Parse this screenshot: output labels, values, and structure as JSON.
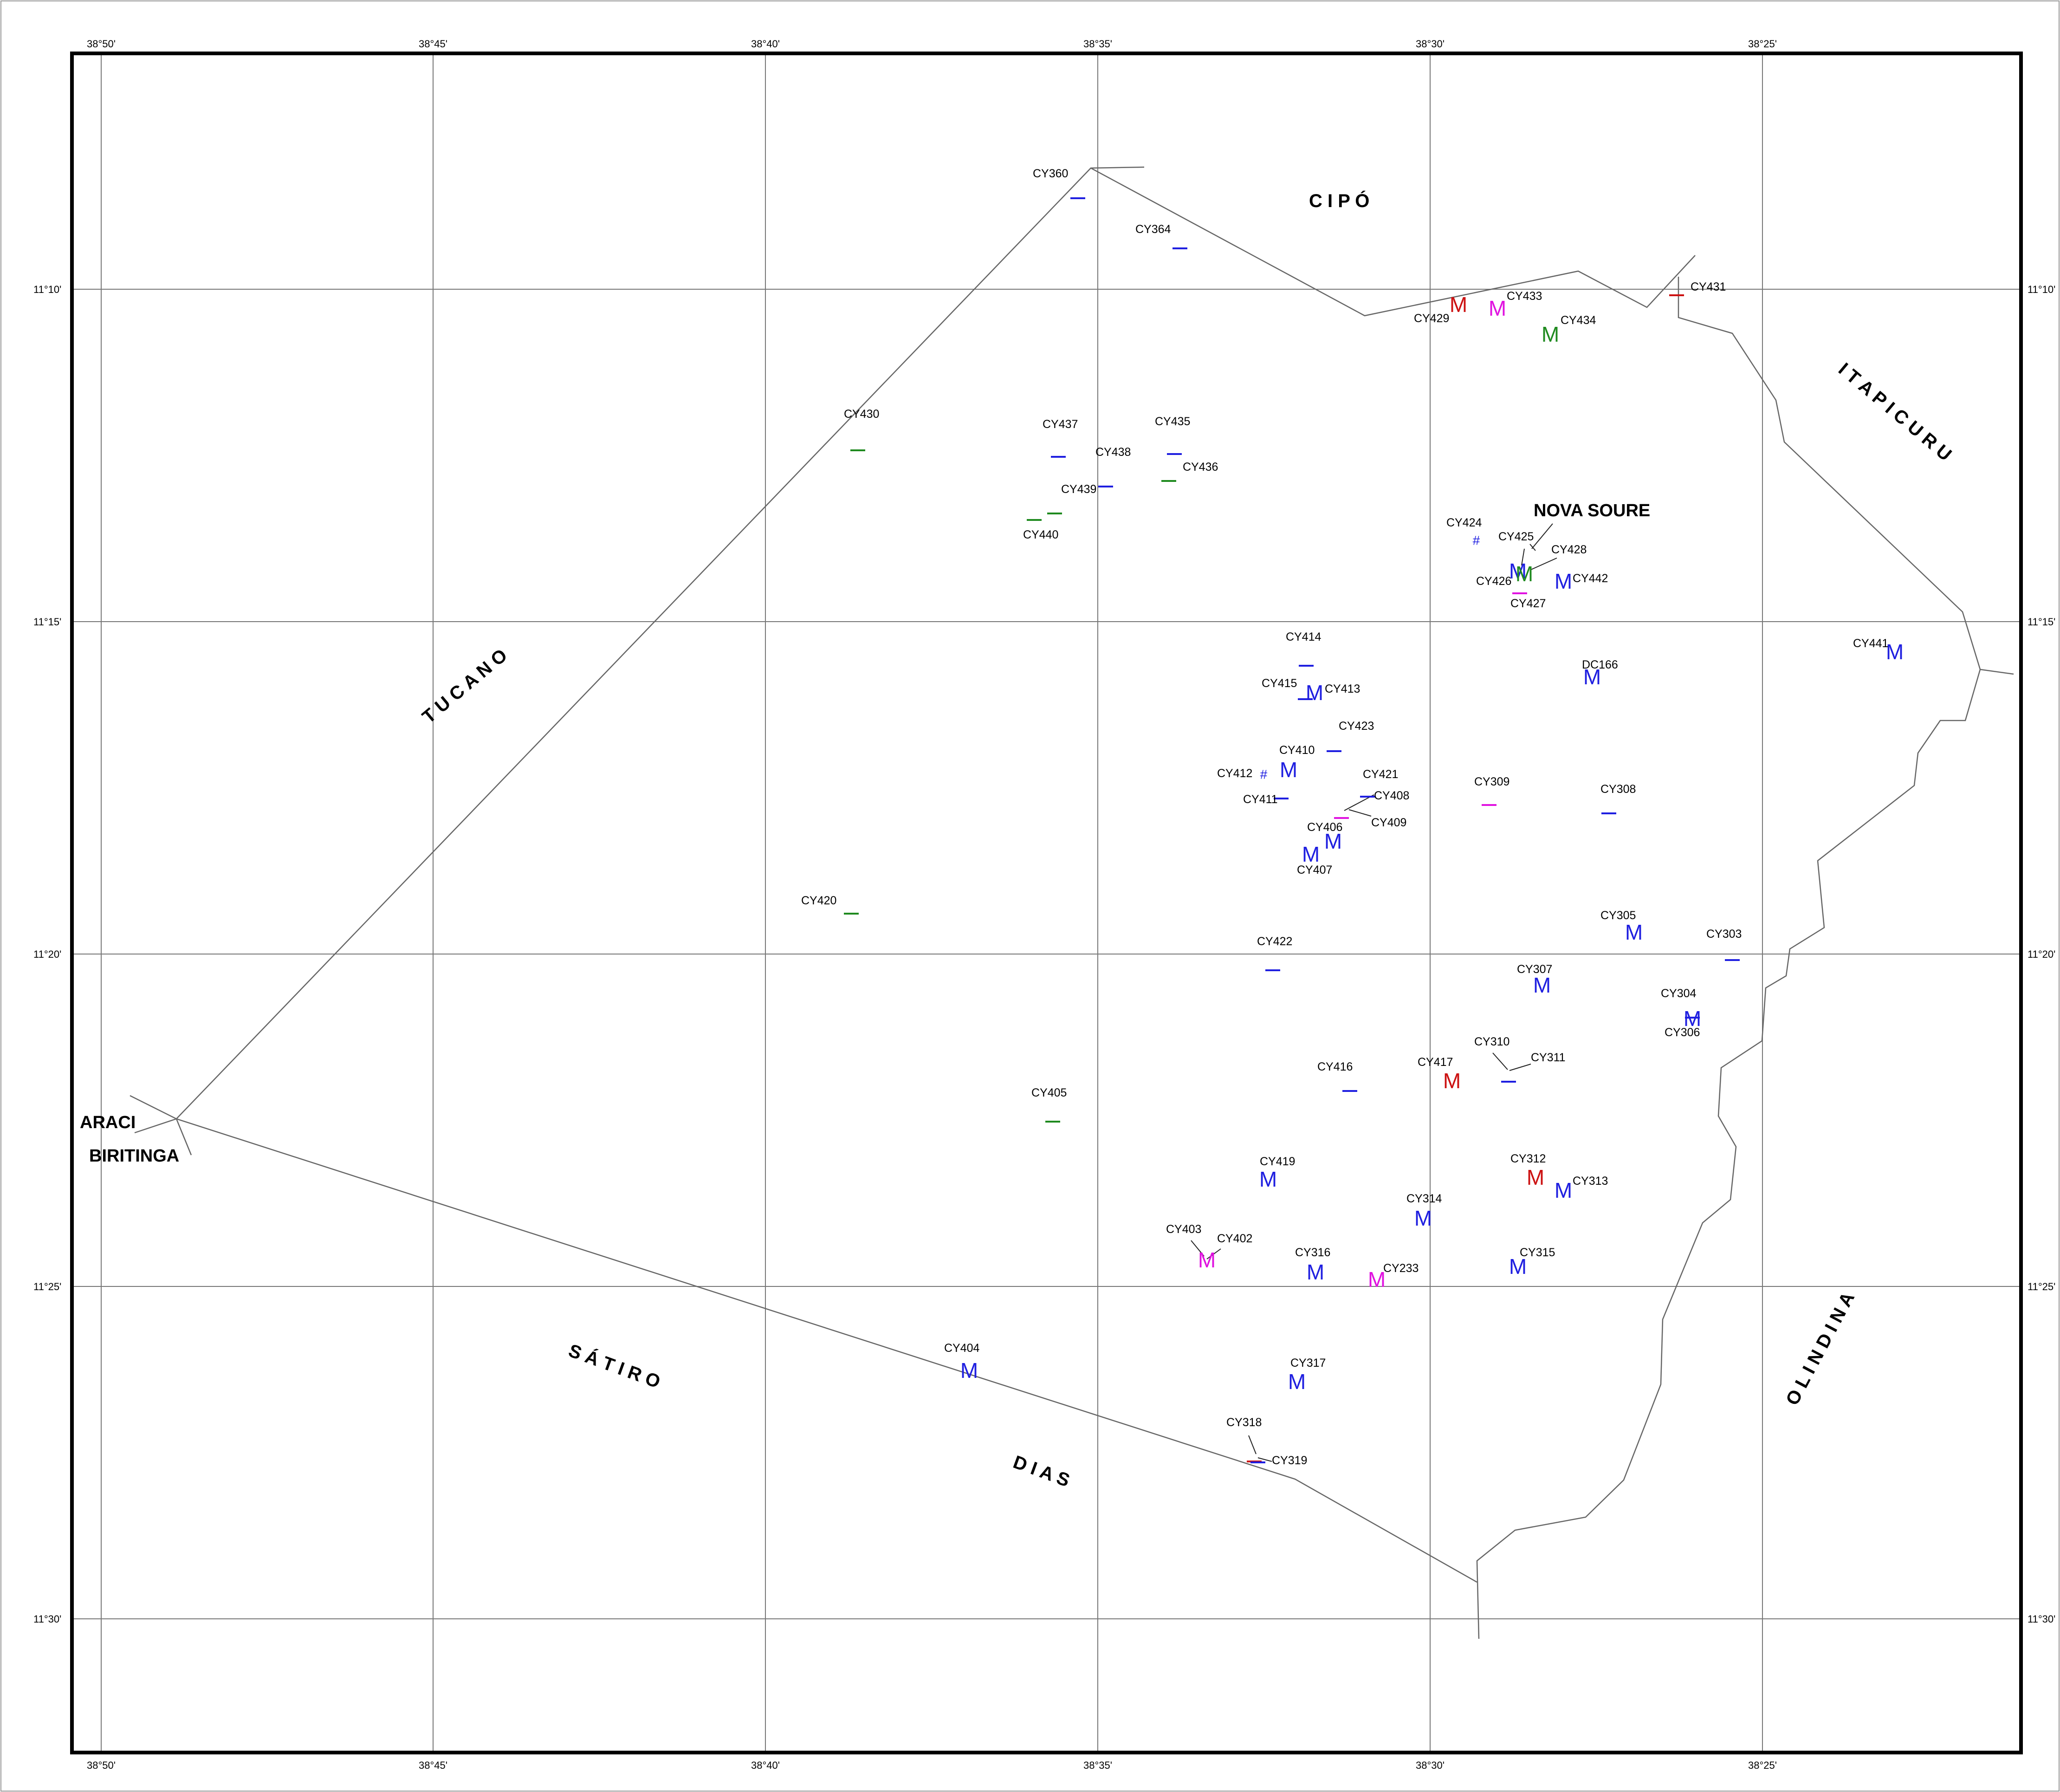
{
  "colors": {
    "blue": "#1f1fe0",
    "green": "#1f8a1f",
    "red": "#cc1111",
    "magenta": "#e012e0",
    "dark": "#202020"
  },
  "graticule": {
    "lon_labels": [
      "38°50'",
      "38°45'",
      "38°40'",
      "38°35'",
      "38°30'",
      "38°25'"
    ],
    "lat_labels": [
      "11°10'",
      "11°15'",
      "11°20'",
      "11°25'",
      "11°30'"
    ]
  },
  "regions": [
    {
      "text": "C   I   P   Ó"
    },
    {
      "text": "I   T   A   P   I   C   U   R   U"
    },
    {
      "text": "T   U   C   A   N   O"
    },
    {
      "text": "S   Á   T   I   R   O"
    },
    {
      "text": "D   I   A   S"
    },
    {
      "text": "O   L   I   N   D   I   N   A"
    }
  ],
  "towns": [
    {
      "text": "NOVA SOURE"
    },
    {
      "text": "ARACI"
    },
    {
      "text": "BIRITINGA"
    }
  ],
  "stations": [
    {
      "id": "CY360",
      "sym": "dash",
      "color": "blue"
    },
    {
      "id": "CY364",
      "sym": "dash",
      "color": "blue"
    },
    {
      "id": "CY429",
      "sym": "M",
      "color": "red"
    },
    {
      "id": "CY433",
      "sym": "M",
      "color": "magenta"
    },
    {
      "id": "CY434",
      "sym": "M",
      "color": "green"
    },
    {
      "id": "CY431",
      "sym": "dash",
      "color": "red"
    },
    {
      "id": "CY430",
      "sym": "dash",
      "color": "green"
    },
    {
      "id": "CY437",
      "sym": "dash",
      "color": "blue"
    },
    {
      "id": "CY435",
      "sym": "dash",
      "color": "blue"
    },
    {
      "id": "CY438",
      "sym": "dash",
      "color": "blue"
    },
    {
      "id": "CY436",
      "sym": "dash",
      "color": "green"
    },
    {
      "id": "CY439",
      "sym": "dash",
      "color": "green"
    },
    {
      "id": "CY440",
      "sym": "dash",
      "color": "green"
    },
    {
      "id": "CY424",
      "sym": "#",
      "color": "blue"
    },
    {
      "id": "CY425",
      "sym": "M",
      "color": "blue"
    },
    {
      "id": "CY428",
      "sym": "M",
      "color": "green"
    },
    {
      "id": "CY426",
      "sym": "dash",
      "color": "magenta"
    },
    {
      "id": "CY427",
      "sym": "none",
      "color": "dark"
    },
    {
      "id": "CY442",
      "sym": "M",
      "color": "blue"
    },
    {
      "id": "CY441",
      "sym": "M",
      "color": "blue"
    },
    {
      "id": "CY414",
      "sym": "dash",
      "color": "blue"
    },
    {
      "id": "CY415",
      "sym": "dash",
      "color": "blue"
    },
    {
      "id": "CY413",
      "sym": "M",
      "color": "blue"
    },
    {
      "id": "DC166",
      "sym": "M",
      "color": "blue"
    },
    {
      "id": "CY423",
      "sym": "dash",
      "color": "blue"
    },
    {
      "id": "CY410",
      "sym": "M",
      "color": "blue"
    },
    {
      "id": "CY412",
      "sym": "#",
      "color": "blue"
    },
    {
      "id": "CY421",
      "sym": "dash",
      "color": "blue"
    },
    {
      "id": "CY411",
      "sym": "dash",
      "color": "blue"
    },
    {
      "id": "CY408",
      "sym": "none",
      "color": "dark"
    },
    {
      "id": "CY409",
      "sym": "dash",
      "color": "magenta"
    },
    {
      "id": "CY406",
      "sym": "M",
      "color": "blue"
    },
    {
      "id": "CY407",
      "sym": "M",
      "color": "blue"
    },
    {
      "id": "CY309",
      "sym": "dash",
      "color": "magenta"
    },
    {
      "id": "CY308",
      "sym": "dash",
      "color": "blue"
    },
    {
      "id": "CY420",
      "sym": "dash",
      "color": "green"
    },
    {
      "id": "CY305",
      "sym": "M",
      "color": "blue"
    },
    {
      "id": "CY303",
      "sym": "dash",
      "color": "blue"
    },
    {
      "id": "CY422",
      "sym": "dash",
      "color": "blue"
    },
    {
      "id": "CY307",
      "sym": "M",
      "color": "blue"
    },
    {
      "id": "CY304",
      "sym": "M",
      "color": "blue"
    },
    {
      "id": "CY306",
      "sym": "dash",
      "color": "blue"
    },
    {
      "id": "CY310",
      "sym": "none",
      "color": "dark"
    },
    {
      "id": "CY311",
      "sym": "dash",
      "color": "blue"
    },
    {
      "id": "CY417",
      "sym": "M",
      "color": "red"
    },
    {
      "id": "CY416",
      "sym": "dash",
      "color": "blue"
    },
    {
      "id": "CY405",
      "sym": "dash",
      "color": "green"
    },
    {
      "id": "CY419",
      "sym": "M",
      "color": "blue"
    },
    {
      "id": "CY312",
      "sym": "M",
      "color": "red"
    },
    {
      "id": "CY313",
      "sym": "M",
      "color": "blue"
    },
    {
      "id": "CY314",
      "sym": "M",
      "color": "blue"
    },
    {
      "id": "CY403",
      "sym": "M",
      "color": "magenta"
    },
    {
      "id": "CY402",
      "sym": "none",
      "color": "dark"
    },
    {
      "id": "CY316",
      "sym": "M",
      "color": "blue"
    },
    {
      "id": "CY233",
      "sym": "M",
      "color": "magenta"
    },
    {
      "id": "CY315",
      "sym": "M",
      "color": "blue"
    },
    {
      "id": "CY404",
      "sym": "M",
      "color": "blue"
    },
    {
      "id": "CY317",
      "sym": "M",
      "color": "blue"
    },
    {
      "id": "CY318",
      "sym": "dash",
      "color": "red"
    },
    {
      "id": "CY319",
      "sym": "dash",
      "color": "blue"
    }
  ]
}
